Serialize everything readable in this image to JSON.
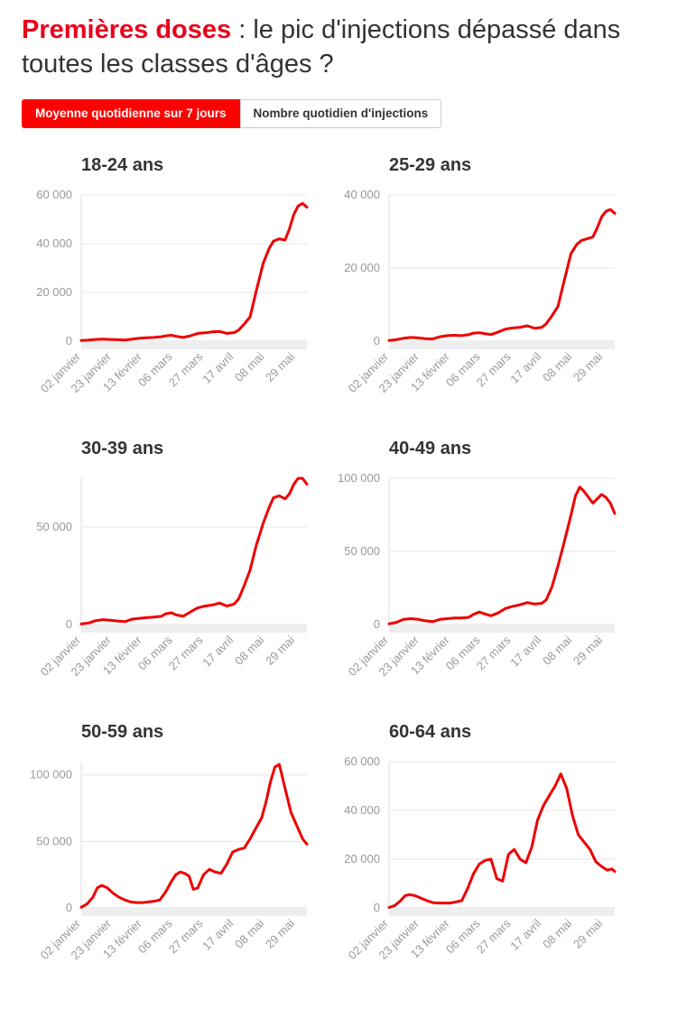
{
  "header": {
    "title_highlight": "Premières doses",
    "title_rest": " : le pic d'injections dépassé dans toutes les classes d'âges ?"
  },
  "toggles": [
    {
      "label": "Moyenne quotidienne sur 7 jours",
      "active": true
    },
    {
      "label": "Nombre quotidien d'injections",
      "active": false
    }
  ],
  "colors": {
    "accent": "#ff0000",
    "line": "#ee0000",
    "grid": "#e5e5e5",
    "axis_band": "#eeeeee",
    "tick": "#999999"
  },
  "chart_data": [
    {
      "type": "line",
      "title": "18-24 ans",
      "x_ticks": [
        "02 janvier",
        "23 janvier",
        "13 février",
        "06 mars",
        "27 mars",
        "17 avril",
        "08 mai",
        "29 mai"
      ],
      "ylim": [
        0,
        60000
      ],
      "y_ticks": [
        0,
        20000,
        40000,
        60000
      ],
      "y_tick_labels": [
        "0",
        "20 000",
        "40 000",
        "60 000"
      ],
      "series": [
        {
          "name": "18-24 ans",
          "x": [
            0,
            5,
            10,
            15,
            20,
            25,
            30,
            35,
            40,
            45,
            50,
            55,
            58,
            62,
            65,
            70,
            75,
            80,
            85,
            90,
            95,
            100,
            105,
            108,
            112,
            116,
            120,
            125,
            129,
            132,
            136,
            140,
            143,
            146,
            149,
            152,
            155
          ],
          "values": [
            300,
            400,
            700,
            800,
            700,
            600,
            500,
            800,
            1200,
            1400,
            1500,
            1800,
            2200,
            2400,
            2000,
            1500,
            2200,
            3200,
            3400,
            3800,
            4000,
            3200,
            3500,
            4500,
            7000,
            10000,
            20000,
            32000,
            38000,
            41000,
            42000,
            41500,
            46000,
            52000,
            55500,
            56500,
            55000
          ]
        }
      ]
    },
    {
      "type": "line",
      "title": "25-29 ans",
      "x_ticks": [
        "02 janvier",
        "23 janvier",
        "13 février",
        "06 mars",
        "27 mars",
        "17 avril",
        "08 mai",
        "29 mai"
      ],
      "ylim": [
        0,
        40000
      ],
      "y_ticks": [
        0,
        20000,
        40000
      ],
      "y_tick_labels": [
        "0",
        "20 000",
        "40 000"
      ],
      "series": [
        {
          "name": "25-29 ans",
          "x": [
            0,
            5,
            10,
            15,
            20,
            25,
            30,
            35,
            40,
            45,
            50,
            55,
            58,
            62,
            65,
            70,
            75,
            80,
            85,
            90,
            95,
            100,
            105,
            108,
            112,
            116,
            120,
            125,
            129,
            132,
            136,
            140,
            143,
            146,
            149,
            152,
            155
          ],
          "values": [
            200,
            400,
            800,
            1000,
            900,
            700,
            600,
            1200,
            1500,
            1600,
            1500,
            1800,
            2200,
            2300,
            2100,
            1800,
            2500,
            3300,
            3600,
            3800,
            4200,
            3500,
            3800,
            4800,
            7000,
            9500,
            16000,
            24000,
            26500,
            27500,
            28000,
            28500,
            31000,
            34000,
            35500,
            36000,
            35000
          ]
        }
      ]
    },
    {
      "type": "line",
      "title": "30-39 ans",
      "x_ticks": [
        "02 janvier",
        "23 janvier",
        "13 février",
        "06 mars",
        "27 mars",
        "17 avril",
        "08 mai",
        "29 mai"
      ],
      "ylim": [
        0,
        75000
      ],
      "y_ticks": [
        0,
        50000
      ],
      "y_tick_labels": [
        "0",
        "50 000"
      ],
      "series": [
        {
          "name": "30-39 ans",
          "x": [
            0,
            5,
            10,
            15,
            20,
            25,
            30,
            35,
            40,
            45,
            50,
            55,
            58,
            62,
            65,
            70,
            75,
            80,
            85,
            90,
            95,
            100,
            105,
            108,
            112,
            116,
            120,
            125,
            129,
            132,
            136,
            140,
            143,
            146,
            149,
            152,
            155
          ],
          "values": [
            300,
            800,
            2000,
            2500,
            2200,
            1800,
            1500,
            2800,
            3200,
            3500,
            3800,
            4200,
            5500,
            6000,
            5000,
            4200,
            6500,
            8500,
            9500,
            10000,
            11000,
            9500,
            10500,
            13000,
            20000,
            28000,
            40000,
            52000,
            60000,
            65000,
            66000,
            64500,
            67000,
            72000,
            75000,
            75000,
            72000
          ]
        }
      ]
    },
    {
      "type": "line",
      "title": "40-49 ans",
      "x_ticks": [
        "02 janvier",
        "23 janvier",
        "13 février",
        "06 mars",
        "27 mars",
        "17 avril",
        "08 mai",
        "29 mai"
      ],
      "ylim": [
        0,
        100000
      ],
      "y_ticks": [
        0,
        50000,
        100000
      ],
      "y_tick_labels": [
        "0",
        "50 000",
        "100 000"
      ],
      "series": [
        {
          "name": "40-49 ans",
          "x": [
            0,
            5,
            10,
            15,
            20,
            25,
            30,
            35,
            40,
            45,
            50,
            55,
            58,
            62,
            65,
            70,
            75,
            80,
            85,
            90,
            95,
            100,
            105,
            108,
            112,
            116,
            120,
            125,
            128,
            131,
            134,
            137,
            140,
            143,
            146,
            149,
            152,
            155
          ],
          "values": [
            500,
            1500,
            3500,
            4000,
            3500,
            2500,
            2000,
            3500,
            4000,
            4500,
            4500,
            5000,
            7000,
            8500,
            7500,
            6000,
            8000,
            11000,
            12500,
            13500,
            15000,
            14000,
            14500,
            17000,
            26000,
            40000,
            55000,
            75000,
            88000,
            94000,
            91000,
            87000,
            83000,
            86000,
            89000,
            87000,
            83000,
            76000
          ]
        }
      ]
    },
    {
      "type": "line",
      "title": "50-59 ans",
      "x_ticks": [
        "02 janvier",
        "23 janvier",
        "13 février",
        "06 mars",
        "27 mars",
        "17 avril",
        "08 mai",
        "29 mai"
      ],
      "ylim": [
        0,
        110000
      ],
      "y_ticks": [
        0,
        50000,
        100000
      ],
      "y_tick_labels": [
        "0",
        "50 000",
        "100 000"
      ],
      "series": [
        {
          "name": "50-59 ans",
          "x": [
            0,
            4,
            8,
            11,
            14,
            18,
            22,
            26,
            30,
            34,
            38,
            42,
            46,
            50,
            54,
            58,
            62,
            65,
            68,
            71,
            74,
            77,
            80,
            84,
            88,
            92,
            96,
            100,
            104,
            108,
            112,
            116,
            120,
            124,
            127,
            130,
            133,
            136,
            140,
            144,
            148,
            152,
            155
          ],
          "values": [
            500,
            3000,
            8000,
            15000,
            17000,
            15000,
            11000,
            8000,
            6000,
            4500,
            4000,
            4000,
            4500,
            5000,
            6000,
            12000,
            20000,
            25000,
            27000,
            26000,
            24000,
            14000,
            15000,
            25000,
            29000,
            27000,
            26000,
            33000,
            42000,
            44000,
            45000,
            52000,
            60000,
            68000,
            80000,
            95000,
            106000,
            108000,
            90000,
            72000,
            62000,
            52000,
            48000
          ]
        }
      ]
    },
    {
      "type": "line",
      "title": "60-64 ans",
      "x_ticks": [
        "02 janvier",
        "23 janvier",
        "13 février",
        "06 mars",
        "27 mars",
        "17 avril",
        "08 mai",
        "29 mai"
      ],
      "ylim": [
        0,
        60000
      ],
      "y_ticks": [
        0,
        20000,
        40000,
        60000
      ],
      "y_tick_labels": [
        "0",
        "20 000",
        "40 000",
        "60 000"
      ],
      "series": [
        {
          "name": "60-64 ans",
          "x": [
            0,
            4,
            8,
            11,
            14,
            18,
            22,
            26,
            30,
            34,
            38,
            42,
            46,
            50,
            54,
            58,
            62,
            66,
            70,
            74,
            78,
            82,
            86,
            90,
            94,
            98,
            102,
            106,
            110,
            114,
            118,
            122,
            126,
            130,
            134,
            138,
            142,
            146,
            150,
            153,
            155
          ],
          "values": [
            200,
            1000,
            3000,
            5000,
            5500,
            5000,
            4000,
            3000,
            2200,
            2000,
            2000,
            2000,
            2500,
            3000,
            8000,
            14000,
            18000,
            19500,
            20000,
            12000,
            11000,
            22000,
            24000,
            20000,
            18500,
            25000,
            36000,
            42000,
            46000,
            50000,
            55000,
            49000,
            38000,
            30000,
            27000,
            24000,
            19000,
            17000,
            15500,
            16000,
            15000
          ]
        }
      ]
    }
  ]
}
